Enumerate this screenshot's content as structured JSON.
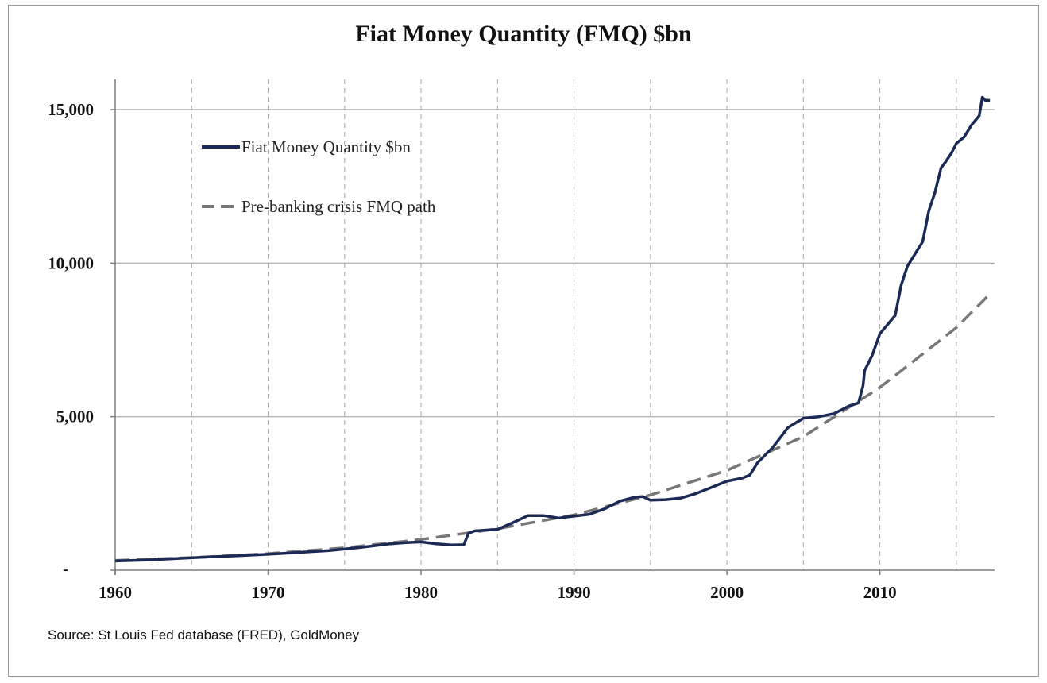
{
  "chart_data": {
    "type": "line",
    "title": "Fiat Money Quantity (FMQ)  $bn",
    "source": "Source: St Louis Fed  database (FRED), GoldMoney",
    "xlim": [
      1960,
      2017.5
    ],
    "ylim": [
      0,
      16000
    ],
    "x_ticks": [
      1960,
      1970,
      1980,
      1990,
      2000,
      2010
    ],
    "x_tick_labels": [
      "1960",
      "1970",
      "1980",
      "1990",
      "2000",
      "2010"
    ],
    "x_dashed_gridlines": [
      1965,
      1970,
      1975,
      1980,
      1985,
      1990,
      1995,
      2000,
      2005,
      2010,
      2015
    ],
    "y_ticks": [
      0,
      5000,
      10000,
      15000
    ],
    "y_tick_labels": [
      "-",
      "5,000",
      "10,000",
      "15,000"
    ],
    "grid": true,
    "legend_position": "upper-left inside",
    "colors": {
      "fmq": "#1b2a55",
      "path": "#777777",
      "grid": "#a6a6a6",
      "axis": "#7f7f7f"
    },
    "series": [
      {
        "name": "Fiat Money Quantity $bn",
        "style": "solid",
        "x": [
          1960,
          1962,
          1964,
          1966,
          1968,
          1970,
          1972,
          1974,
          1976,
          1978,
          1979,
          1980,
          1981,
          1982,
          1982.8,
          1983.1,
          1983.5,
          1985,
          1986,
          1987,
          1988,
          1989,
          1990,
          1991,
          1992,
          1993,
          1994,
          1994.5,
          1995,
          1996,
          1997,
          1998,
          1999,
          2000,
          2001,
          2001.5,
          2002,
          2003,
          2004,
          2005,
          2006,
          2007,
          2008,
          2008.6,
          2008.9,
          2009,
          2009.5,
          2010,
          2010.5,
          2011,
          2011.4,
          2011.8,
          2012.3,
          2012.8,
          2013.2,
          2013.6,
          2014,
          2014.3,
          2014.7,
          2015,
          2015.5,
          2016,
          2016.5,
          2016.7,
          2016.9,
          2017.2
        ],
        "y": [
          300,
          330,
          380,
          430,
          470,
          520,
          580,
          640,
          740,
          860,
          900,
          920,
          860,
          820,
          830,
          1200,
          1280,
          1330,
          1550,
          1780,
          1780,
          1700,
          1760,
          1820,
          2000,
          2250,
          2380,
          2400,
          2280,
          2300,
          2350,
          2500,
          2700,
          2900,
          3000,
          3100,
          3500,
          4000,
          4650,
          4950,
          5000,
          5100,
          5350,
          5450,
          6000,
          6500,
          7000,
          7700,
          8000,
          8300,
          9300,
          9900,
          10300,
          10700,
          11700,
          12300,
          13100,
          13300,
          13600,
          13900,
          14100,
          14500,
          14800,
          15400,
          15300,
          15300
        ]
      },
      {
        "name": "Pre-banking crisis FMQ path",
        "style": "dashed",
        "x": [
          1960,
          1965,
          1970,
          1975,
          1980,
          1985,
          1990,
          1995,
          2000,
          2005,
          2010,
          2015,
          2017
        ],
        "y": [
          320,
          410,
          540,
          730,
          1000,
          1350,
          1800,
          2450,
          3250,
          4350,
          5950,
          7900,
          8900
        ]
      }
    ]
  }
}
